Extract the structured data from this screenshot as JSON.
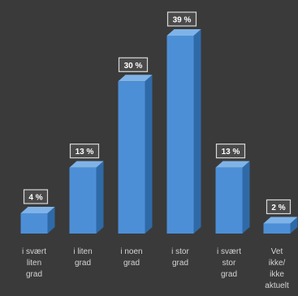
{
  "chart_data": {
    "type": "bar",
    "categories": [
      "i svært liten grad",
      "i liten grad",
      "i noen grad",
      "i stor grad",
      "i svært stor grad",
      "Vet ikke/ ikke aktuelt"
    ],
    "category_lines": [
      [
        "i svært",
        "liten",
        "grad"
      ],
      [
        "i liten",
        "grad"
      ],
      [
        "i noen",
        "grad"
      ],
      [
        "i stor",
        "grad"
      ],
      [
        "i svært",
        "stor",
        "grad"
      ],
      [
        "Vet",
        "ikke/",
        "ikke",
        "aktuelt"
      ]
    ],
    "values": [
      4,
      13,
      30,
      39,
      13,
      2
    ],
    "value_labels": [
      "4 %",
      "13 %",
      "30 %",
      "39 %",
      "13 %",
      "2 %"
    ],
    "ylim": [
      0,
      39
    ],
    "grid": false,
    "legend": "none",
    "colors": {
      "background": "#3a3a3a",
      "bar_front": "#4d8fd6",
      "bar_side": "#2f6aa8",
      "bar_top": "#7fb3e8",
      "label_box_fill": "#4a4a4a",
      "label_box_stroke": "#d8d8d8",
      "label_text": "#ffffff",
      "category_text": "#d4d4d4"
    }
  }
}
